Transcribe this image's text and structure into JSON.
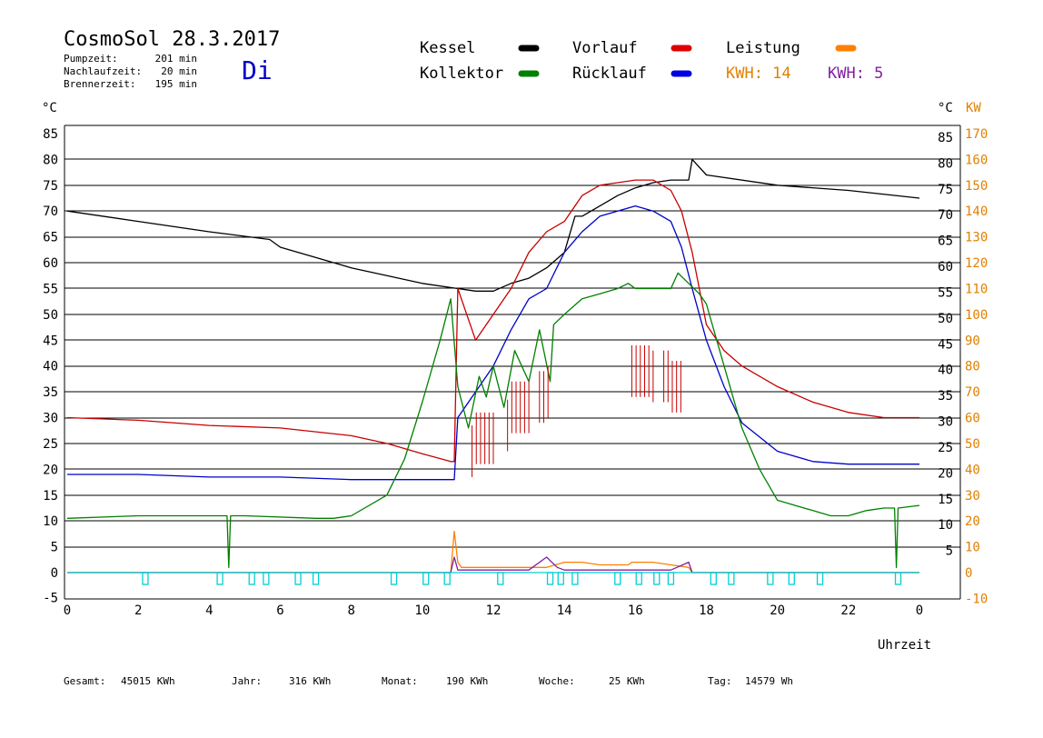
{
  "header": {
    "title": "CosmoSol 28.3.2017",
    "day": "Di",
    "stats": [
      {
        "label": "Pumpzeit:",
        "value": "201 min"
      },
      {
        "label": "Nachlaufzeit:",
        "value": "20 min"
      },
      {
        "label": "Brennerzeit:",
        "value": "195 min"
      }
    ]
  },
  "legend": {
    "items": [
      {
        "label": "Kessel",
        "color": "#000000"
      },
      {
        "label": "Vorlauf",
        "color": "#e00000"
      },
      {
        "label": "Leistung",
        "color": "#ff8000"
      },
      {
        "label": "Kollektor",
        "color": "#008000"
      },
      {
        "label": "Rücklauf",
        "color": "#0000e0"
      }
    ],
    "kwh": [
      {
        "label": "KWH: 14",
        "color": "#e08000"
      },
      {
        "label": "KWH: 5",
        "color": "#8020a0"
      }
    ]
  },
  "footer": {
    "totals": [
      {
        "label": "Gesamt:",
        "value": "45015 KWh"
      },
      {
        "label": "Jahr:",
        "value": "316 KWh"
      },
      {
        "label": "Monat:",
        "value": "190 KWh"
      },
      {
        "label": "Woche:",
        "value": "25 KWh"
      },
      {
        "label": "Tag:",
        "value": "14579 Wh"
      }
    ]
  },
  "chart_data": {
    "type": "line",
    "title": "CosmoSol 28.3.2017",
    "xlabel": "Uhrzeit",
    "ylabel_left": "°C",
    "ylabel_right": "°C",
    "ylabel_right2": "KW",
    "xlim": [
      0,
      24
    ],
    "ylim": [
      -5,
      85
    ],
    "x_ticks": [
      "0",
      "2",
      "4",
      "6",
      "8",
      "10",
      "12",
      "14",
      "16",
      "18",
      "20",
      "22",
      "0"
    ],
    "y_ticks_left": [
      "85",
      "80",
      "75",
      "70",
      "65",
      "60",
      "55",
      "50",
      "45",
      "40",
      "35",
      "30",
      "25",
      "20",
      "15",
      "10",
      "5",
      "0",
      "-5"
    ],
    "y_ticks_right": [
      "85",
      "80",
      "75",
      "70",
      "65",
      "60",
      "55",
      "50",
      "45",
      "40",
      "35",
      "30",
      "25",
      "20",
      "15",
      "10",
      "5"
    ],
    "y_ticks_kw": [
      "170",
      "160",
      "150",
      "140",
      "130",
      "120",
      "110",
      "100",
      "90",
      "80",
      "70",
      "60",
      "50",
      "40",
      "30",
      "20",
      "10",
      "0",
      "-10"
    ],
    "grid": true,
    "series": [
      {
        "name": "Kessel",
        "color": "#000000",
        "x": [
          0,
          2,
          4,
          5.7,
          6,
          8,
          10,
          11,
          11.5,
          12,
          12.5,
          13,
          13.5,
          14,
          14.3,
          14.5,
          15,
          15.5,
          16,
          16.5,
          17,
          17.5,
          17.6,
          18,
          20,
          22,
          24
        ],
        "y": [
          70,
          68,
          66,
          64.5,
          63,
          59,
          56,
          55,
          54.5,
          54.5,
          56,
          57,
          59,
          62,
          69,
          69,
          71,
          73,
          74.5,
          75.5,
          76,
          76,
          80,
          77,
          75,
          74,
          72.5
        ]
      },
      {
        "name": "Vorlauf",
        "color": "#c80000",
        "x": [
          0,
          2,
          4,
          6,
          8,
          9,
          10,
          10.8,
          10.9,
          11,
          11.5,
          12,
          12.5,
          13,
          13.5,
          14,
          14.5,
          15,
          15.5,
          16,
          16.5,
          17,
          17.3,
          17.6,
          18,
          18.5,
          19,
          20,
          21,
          22,
          23,
          24
        ],
        "y": [
          30,
          29.5,
          28.5,
          28,
          26.5,
          25,
          23,
          21.5,
          21.5,
          55,
          45,
          50,
          55,
          62,
          66,
          68,
          73,
          75,
          75.5,
          76,
          76,
          74,
          70,
          62,
          48,
          43,
          40,
          36,
          33,
          31,
          30,
          30
        ]
      },
      {
        "name": "Rücklauf",
        "color": "#0000c8",
        "x": [
          0,
          2,
          4,
          6,
          8,
          10,
          10.8,
          10.9,
          11,
          11.5,
          12,
          12.5,
          13,
          13.5,
          14,
          14.5,
          15,
          15.5,
          16,
          16.5,
          17,
          17.3,
          17.6,
          18,
          18.5,
          19,
          20,
          21,
          22,
          24
        ],
        "y": [
          19,
          19,
          18.5,
          18.5,
          18,
          18,
          18,
          18,
          30,
          35,
          40,
          47,
          53,
          55,
          62,
          66,
          69,
          70,
          71,
          70,
          68,
          63,
          55,
          45,
          36,
          29,
          23.5,
          21.5,
          21,
          21
        ]
      },
      {
        "name": "Kollektor",
        "color": "#008000",
        "x": [
          0,
          2,
          4,
          4.5,
          4.55,
          4.6,
          5,
          7,
          7.5,
          8,
          9,
          9.5,
          10,
          10.5,
          10.8,
          11,
          11.3,
          11.6,
          11.8,
          12,
          12.3,
          12.6,
          13,
          13.3,
          13.6,
          13.7,
          14,
          14.5,
          15,
          15.5,
          15.8,
          16,
          16.5,
          17,
          17.2,
          17.5,
          17.8,
          18,
          18.5,
          19,
          19.5,
          20,
          20.5,
          21,
          21.5,
          22,
          22.5,
          23,
          23.3,
          23.35,
          23.4,
          24
        ],
        "y": [
          10.5,
          11,
          11,
          11,
          1,
          11,
          11,
          10.5,
          10.5,
          11,
          15,
          22,
          33,
          45,
          53,
          36,
          28,
          38,
          34,
          40,
          32,
          43,
          37,
          47,
          37,
          48,
          50,
          53,
          54,
          55,
          56,
          55,
          55,
          55,
          58,
          56,
          54,
          52,
          40,
          28,
          20,
          14,
          13,
          12,
          11,
          11,
          12,
          12.5,
          12.5,
          1,
          12.5,
          13
        ]
      },
      {
        "name": "Leistung",
        "color": "#ff8000",
        "x": [
          0,
          10.8,
          10.9,
          11.0,
          11.1,
          11.5,
          12,
          12.5,
          13,
          13.5,
          14,
          14.5,
          15,
          15.5,
          15.8,
          15.9,
          16.5,
          17,
          17.5,
          17.6,
          24
        ],
        "y": [
          0,
          0,
          8,
          2,
          1,
          1,
          1,
          1,
          1,
          1,
          2,
          2,
          1.5,
          1.5,
          1.5,
          2,
          2,
          1.5,
          1,
          0,
          0
        ]
      },
      {
        "name": "",
        "color": "#8020a0",
        "x": [
          0,
          10.8,
          10.9,
          11.0,
          11.5,
          12,
          13,
          13.5,
          13.8,
          14,
          15,
          16,
          17,
          17.5,
          17.6,
          24
        ],
        "y": [
          0,
          0,
          3,
          0.5,
          0.5,
          0.5,
          0.5,
          3,
          1,
          0.5,
          0.5,
          0.5,
          0.5,
          2,
          0,
          0
        ]
      },
      {
        "name": "",
        "color": "#00d0d0",
        "x": [
          0,
          24
        ],
        "y": [
          0,
          0
        ]
      }
    ]
  }
}
